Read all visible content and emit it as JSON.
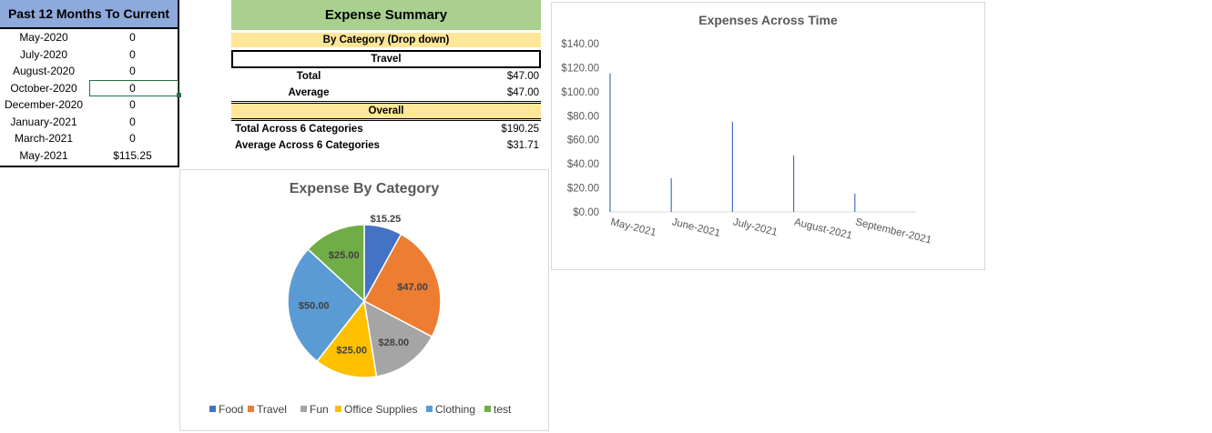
{
  "months_table": {
    "title": "Past 12 Months To Current",
    "rows": [
      {
        "month": "May-2020",
        "value": "0"
      },
      {
        "month": "July-2020",
        "value": "0"
      },
      {
        "month": "August-2020",
        "value": "0"
      },
      {
        "month": "October-2020",
        "value": "0"
      },
      {
        "month": "December-2020",
        "value": "0"
      },
      {
        "month": "January-2021",
        "value": "0"
      },
      {
        "month": "March-2021",
        "value": "0"
      },
      {
        "month": "May-2021",
        "value": "$115.25"
      }
    ]
  },
  "summary": {
    "title": "Expense Summary",
    "by_category_label": "By Category (Drop down)",
    "selected_category": "Travel",
    "total_label": "Total",
    "total_value": "$47.00",
    "average_label": "Average",
    "average_value": "$47.00",
    "overall_label": "Overall",
    "total_across_label": "Total Across 6 Categories",
    "total_across_value": "$190.25",
    "average_across_label": "Average Across 6 Categories",
    "average_across_value": "$31.71"
  },
  "chart_data": [
    {
      "type": "pie",
      "title": "Expense By Category",
      "legend_position": "bottom",
      "slices": [
        {
          "name": "Food",
          "value": 15.25,
          "label": "$15.25",
          "color": "#4472c4"
        },
        {
          "name": "Travel",
          "value": 47.0,
          "label": "$47.00",
          "color": "#ed7d31"
        },
        {
          "name": "Fun",
          "value": 28.0,
          "label": "$28.00",
          "color": "#a5a5a5"
        },
        {
          "name": "Office Supplies",
          "value": 25.0,
          "label": "$25.00",
          "color": "#ffc000"
        },
        {
          "name": "Clothing",
          "value": 50.0,
          "label": "$50.00",
          "color": "#5b9bd5"
        },
        {
          "name": "test",
          "value": 25.0,
          "label": "$25.00",
          "color": "#70ad47"
        }
      ]
    },
    {
      "type": "bar",
      "title": "Expenses Across Time",
      "categories": [
        "May-2021",
        "June-2021",
        "July-2021",
        "August-2021",
        "September-2021"
      ],
      "values": [
        115.25,
        28.0,
        75.0,
        47.0,
        15.25
      ],
      "ylim": [
        0,
        140
      ],
      "yticks": [
        "$0.00",
        "$20.00",
        "$40.00",
        "$60.00",
        "$80.00",
        "$100.00",
        "$120.00",
        "$140.00"
      ],
      "bar_color": "#4472c4",
      "grid": false
    }
  ]
}
